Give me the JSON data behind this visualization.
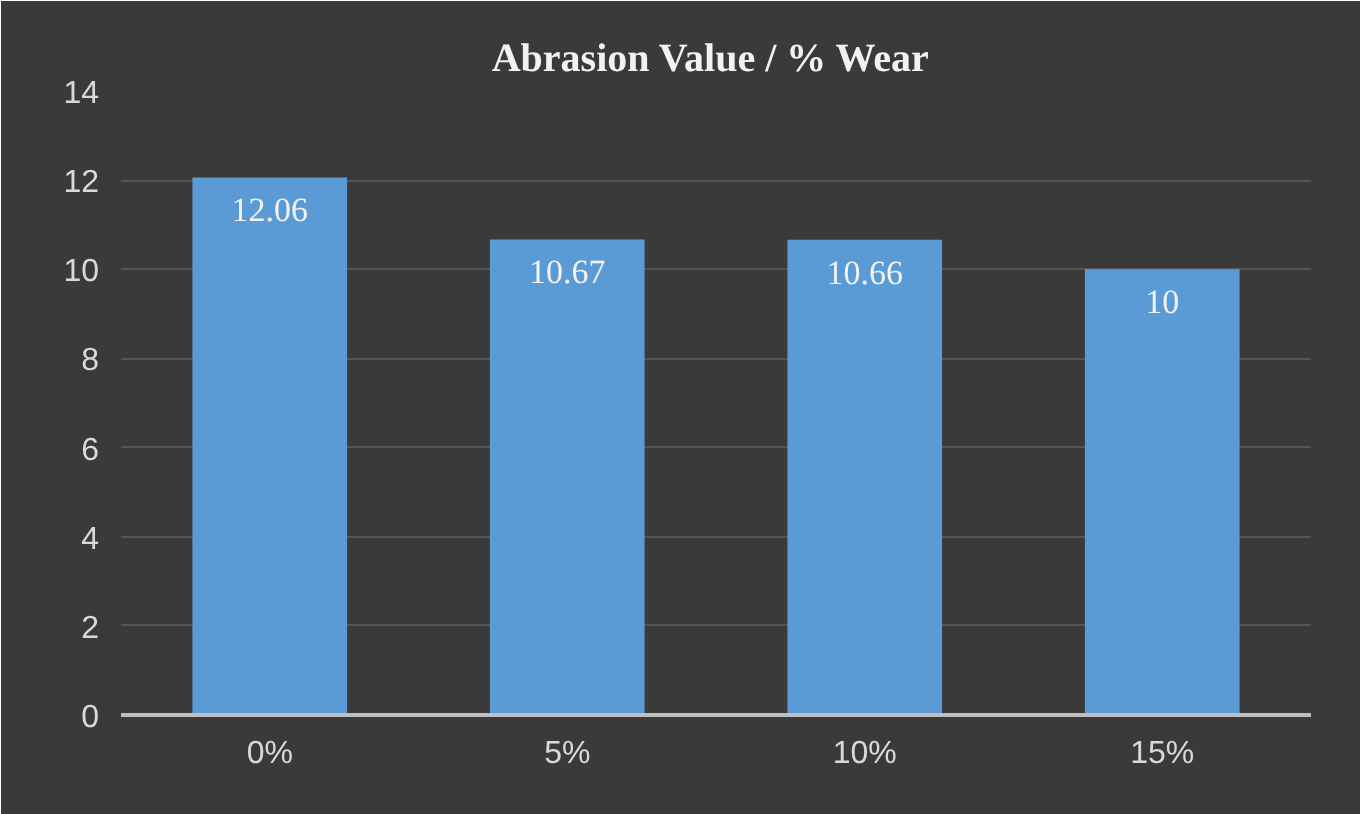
{
  "chart_data": {
    "type": "bar",
    "title": "Abrasion Value / %  Wear",
    "categories": [
      "0%",
      "5%",
      "10%",
      "15%"
    ],
    "values": [
      12.06,
      10.67,
      10.66,
      10
    ],
    "color": "#5b9bd5",
    "ylim": [
      0,
      14
    ],
    "yticks": [
      0,
      2,
      4,
      6,
      8,
      10,
      12,
      14
    ],
    "grid": "y",
    "data_labels": true
  }
}
